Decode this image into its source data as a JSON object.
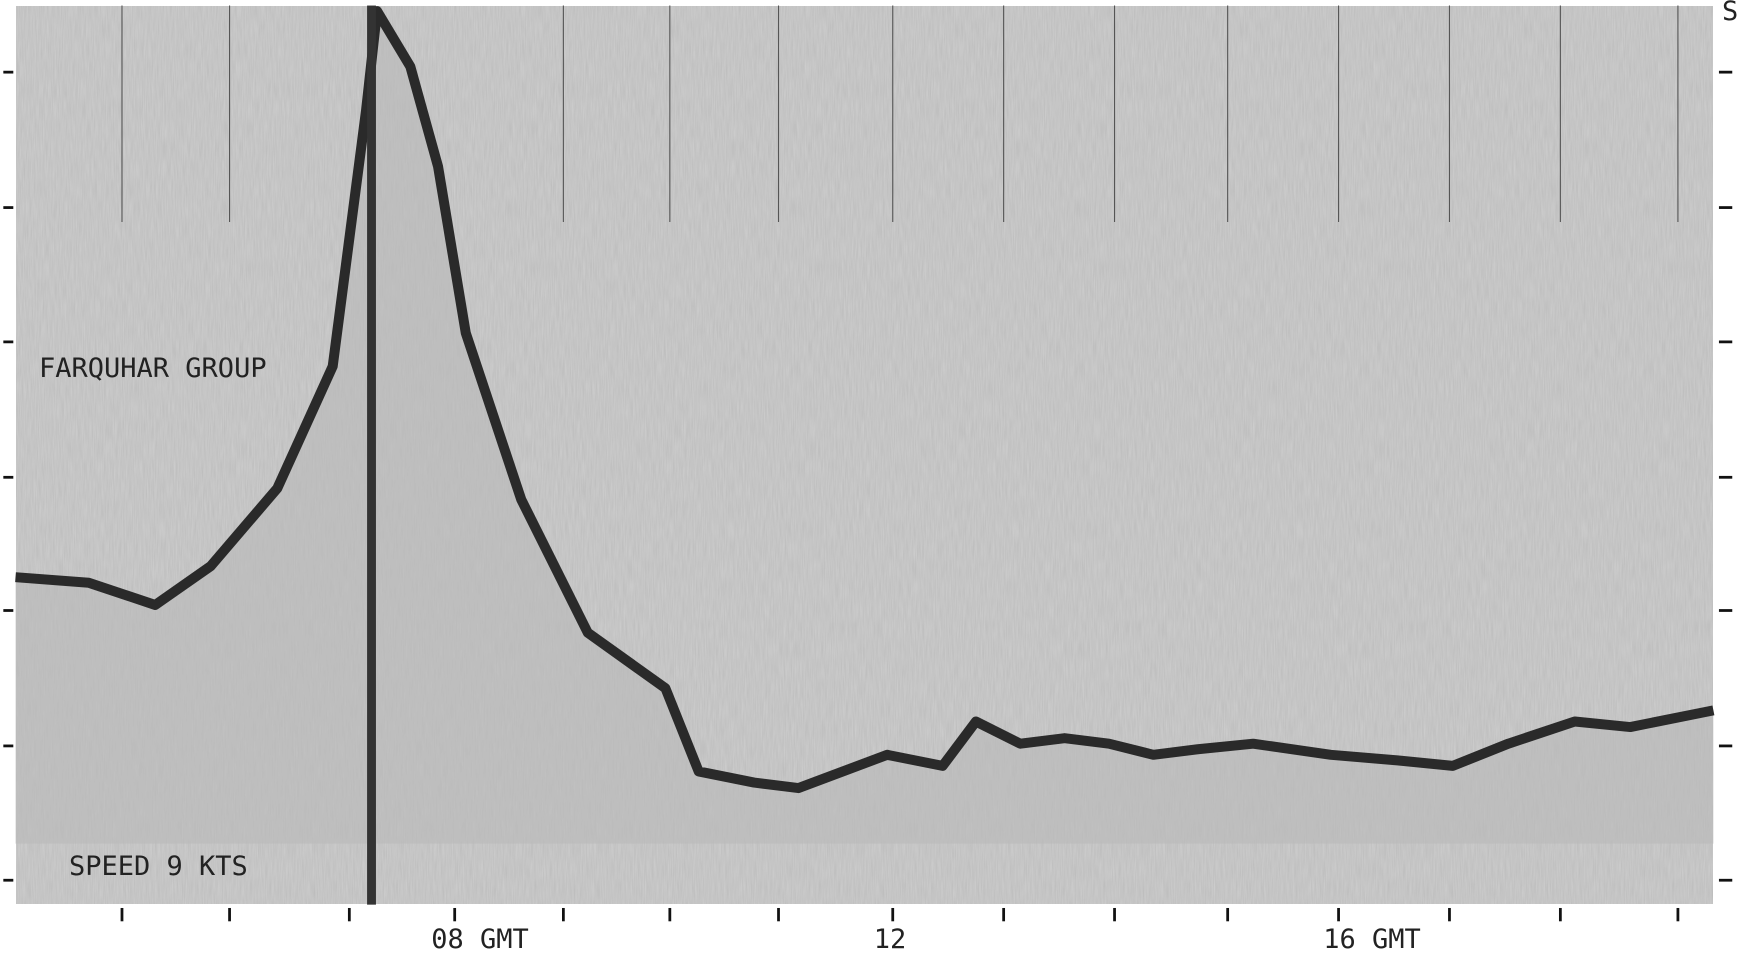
{
  "record": {
    "annotations": {
      "location": "FARQUHAR GROUP",
      "speed": "SPEED 9 KTS",
      "corner": "S"
    },
    "time_axis": {
      "labels": [
        "08 GMT",
        "12",
        "16 GMT"
      ]
    }
  }
}
